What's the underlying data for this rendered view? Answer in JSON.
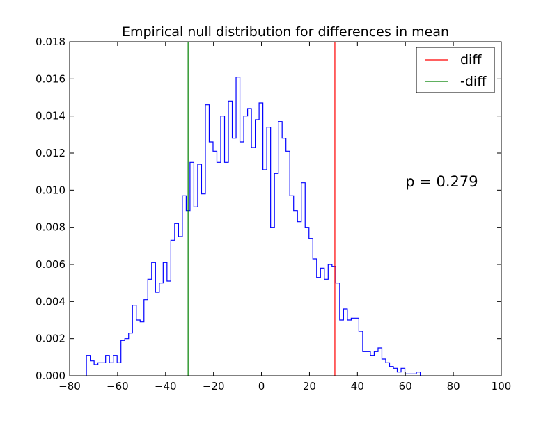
{
  "chart_data": {
    "type": "step-histogram",
    "title": "Empirical null distribution for differences in mean",
    "xlabel": "",
    "ylabel": "",
    "xlim": [
      -80,
      100
    ],
    "ylim": [
      0,
      0.018
    ],
    "xticks": [
      -80,
      -60,
      -40,
      -20,
      0,
      20,
      40,
      60,
      80,
      100
    ],
    "yticks": [
      0.0,
      0.002,
      0.004,
      0.006,
      0.008,
      0.01,
      0.012,
      0.014,
      0.016,
      0.018
    ],
    "xtick_labels": [
      "−80",
      "−60",
      "−40",
      "−20",
      "0",
      "20",
      "40",
      "60",
      "80",
      "100"
    ],
    "ytick_labels": [
      "0.000",
      "0.002",
      "0.004",
      "0.006",
      "0.008",
      "0.010",
      "0.012",
      "0.014",
      "0.016",
      "0.018"
    ],
    "grid": false,
    "histogram": {
      "name": "null distribution",
      "color": "#0000ff",
      "bin_start": -73,
      "bin_width": 1.6,
      "values": [
        0.0011,
        0.0008,
        0.0006,
        0.0007,
        0.0007,
        0.0011,
        0.0007,
        0.0011,
        0.0007,
        0.0019,
        0.002,
        0.0023,
        0.0038,
        0.003,
        0.0029,
        0.0041,
        0.0052,
        0.0061,
        0.0045,
        0.005,
        0.0061,
        0.0051,
        0.0073,
        0.0082,
        0.0075,
        0.0097,
        0.0089,
        0.0115,
        0.0091,
        0.0114,
        0.0098,
        0.0146,
        0.0126,
        0.0121,
        0.0115,
        0.014,
        0.0115,
        0.0148,
        0.0128,
        0.0161,
        0.0126,
        0.014,
        0.0144,
        0.0123,
        0.0138,
        0.0147,
        0.0111,
        0.0134,
        0.008,
        0.0109,
        0.0137,
        0.0128,
        0.0121,
        0.0097,
        0.0089,
        0.0083,
        0.0104,
        0.008,
        0.0074,
        0.0063,
        0.0053,
        0.0058,
        0.0052,
        0.006,
        0.0059,
        0.005,
        0.003,
        0.0036,
        0.003,
        0.0031,
        0.0031,
        0.0024,
        0.0013,
        0.0013,
        0.0011,
        0.0013,
        0.0015,
        0.0009,
        0.0007,
        0.0005,
        0.0004,
        0.0002,
        0.0004,
        0.0001,
        0.0001,
        0.0001,
        0.0002
      ]
    },
    "vlines": [
      {
        "label": "diff",
        "x": 30.6,
        "color": "#ff0000"
      },
      {
        "label": "-diff",
        "x": -30.6,
        "color": "#008000"
      }
    ],
    "legend": {
      "placement": "top-right",
      "entries": [
        {
          "label": "diff",
          "color": "#ff0000"
        },
        {
          "label": "-diff",
          "color": "#008000"
        }
      ]
    },
    "annotation": {
      "text": "p = 0.279",
      "x": 60,
      "y": 0.0102
    }
  }
}
